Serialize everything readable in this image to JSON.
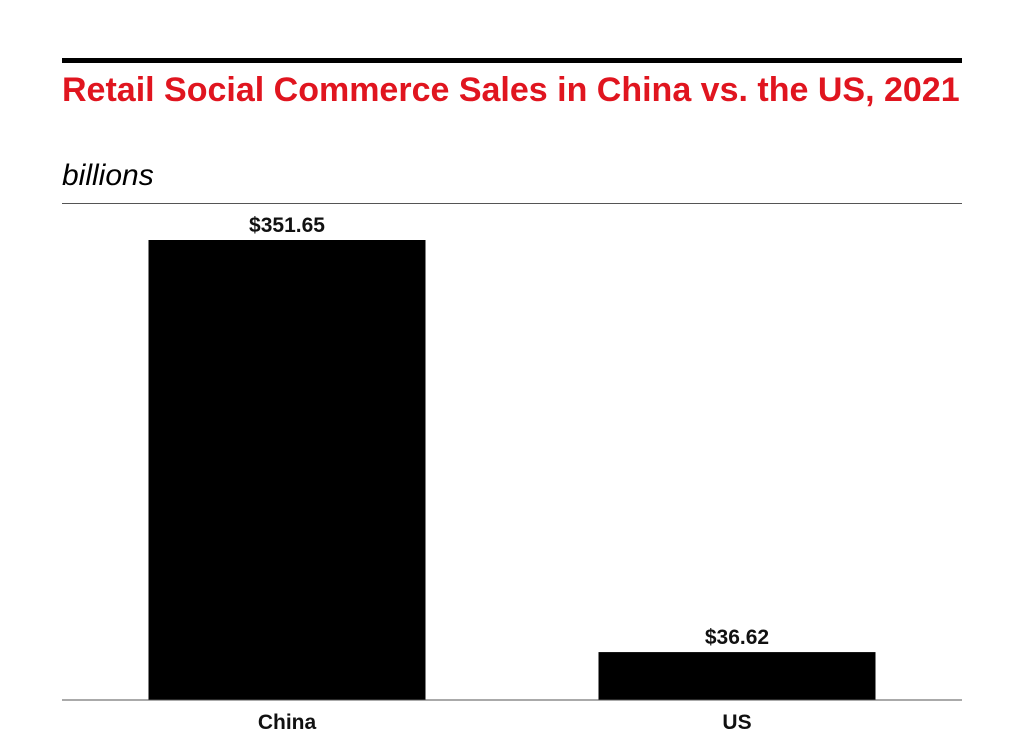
{
  "title": "Retail Social Commerce Sales in China vs. the US, 2021",
  "subtitle": "billions",
  "colors": {
    "title": "#e0151f",
    "bars": "#000000"
  },
  "chart_data": {
    "type": "bar",
    "categories": [
      "China",
      "US"
    ],
    "values": [
      351.65,
      36.62
    ],
    "value_labels": [
      "$351.65",
      "$36.62"
    ],
    "title": "Retail Social Commerce Sales in China vs. the US, 2021",
    "subtitle": "billions",
    "xlabel": "",
    "ylabel": "",
    "ylim": [
      0,
      351.65
    ],
    "grid": false,
    "legend": "none"
  }
}
